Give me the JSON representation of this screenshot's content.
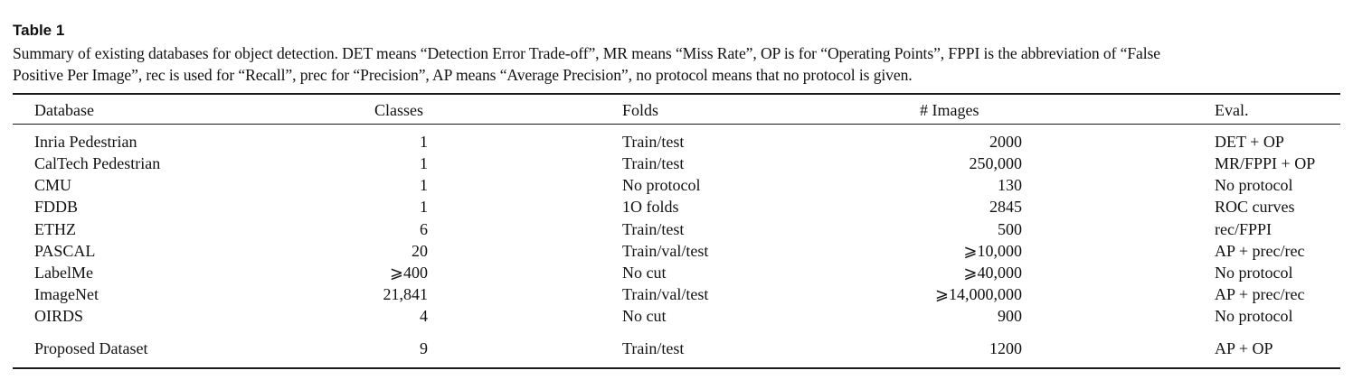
{
  "table_label": "Table 1",
  "caption_lines": [
    "Summary of existing databases for object detection. DET means “Detection Error Trade-off”, MR means “Miss Rate”, OP is for “Operating Points”, FPPI is the abbreviation of “False",
    "Positive Per Image”, rec is used for “Recall”, prec for “Precision”, AP means “Average Precision”, no protocol means that no protocol is given."
  ],
  "headers": [
    "Database",
    "Classes",
    "Folds",
    "# Images",
    "Eval."
  ],
  "rows": [
    [
      "Inria Pedestrian",
      "1",
      "Train/test",
      "2000",
      "DET + OP"
    ],
    [
      "CalTech Pedestrian",
      "1",
      "Train/test",
      "250,000",
      "MR/FPPI + OP"
    ],
    [
      "CMU",
      "1",
      "No protocol",
      "130",
      "No protocol"
    ],
    [
      "FDDB",
      "1",
      "1O folds",
      "2845",
      "ROC curves"
    ],
    [
      "ETHZ",
      "6",
      "Train/test",
      "500",
      "rec/FPPI"
    ],
    [
      "PASCAL",
      "20",
      "Train/val/test",
      "⩾10,000",
      "AP + prec/rec"
    ],
    [
      "LabelMe",
      "⩾400",
      "No cut",
      "⩾40,000",
      "No protocol"
    ],
    [
      "ImageNet",
      "21,841",
      "Train/val/test",
      "⩾14,000,000",
      "AP + prec/rec"
    ],
    [
      "OIRDS",
      "4",
      "No cut",
      "900",
      "No protocol"
    ],
    [
      "Proposed Dataset",
      "9",
      "Train/test",
      "1200",
      "AP + OP"
    ]
  ]
}
